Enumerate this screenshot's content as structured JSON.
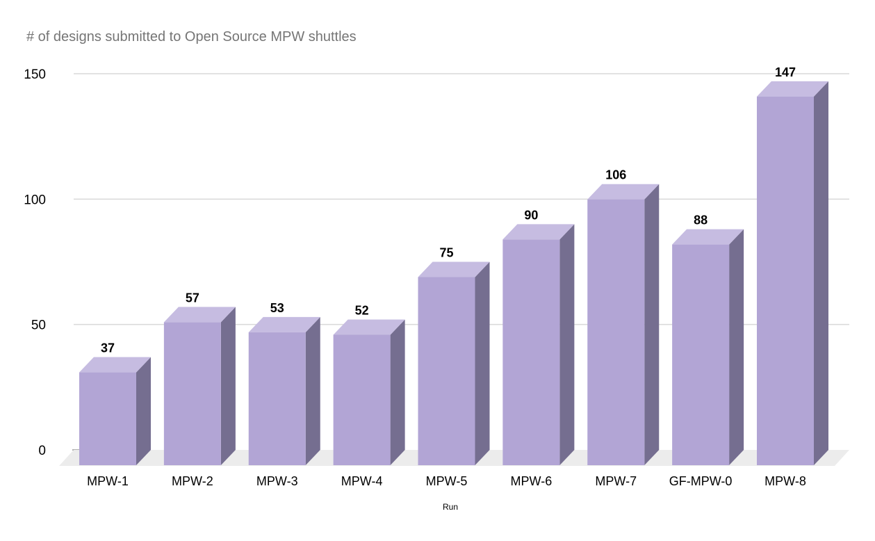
{
  "chart_data": {
    "type": "bar",
    "bar_style": "3d-column",
    "title": "# of designs submitted to Open Source MPW shuttles",
    "xlabel": "Run",
    "ylabel": "",
    "categories": [
      "MPW-1",
      "MPW-2",
      "MPW-3",
      "MPW-4",
      "MPW-5",
      "MPW-6",
      "MPW-7",
      "GF-MPW-0",
      "MPW-8"
    ],
    "values": [
      37,
      57,
      53,
      52,
      75,
      90,
      106,
      88,
      147
    ],
    "value_labels": [
      "37",
      "57",
      "53",
      "52",
      "75",
      "90",
      "106",
      "88",
      "147"
    ],
    "yticks": [
      0,
      50,
      100,
      150
    ],
    "ylim": [
      0,
      150
    ],
    "grid": true,
    "legend_position": "none"
  },
  "colors": {
    "background": "#ffffff",
    "bar_front": "#b2a5d5",
    "bar_top": "#c6bce1",
    "bar_side": "#756e90",
    "floor": "#ececec",
    "gridline": "#d9d9d9",
    "zero_tick": "#616161",
    "title_text": "#757575",
    "label_text": "#000000"
  }
}
